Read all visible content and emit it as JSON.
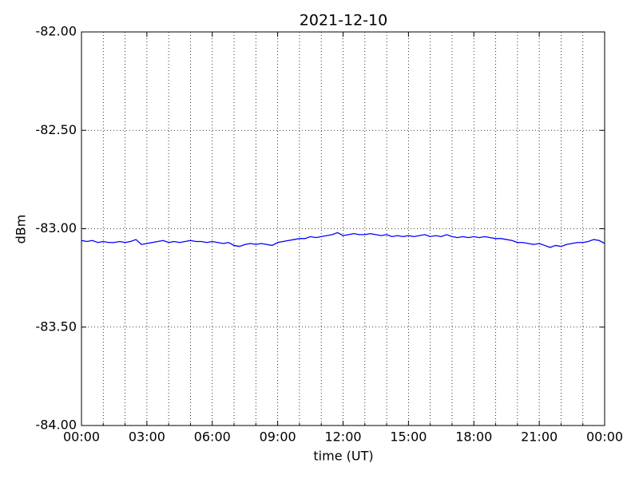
{
  "chart_data": {
    "type": "line",
    "title": "2021-12-10",
    "xlabel": "time (UT)",
    "ylabel": "dBm",
    "x": [
      0,
      0.25,
      0.5,
      0.75,
      1,
      1.25,
      1.5,
      1.75,
      2,
      2.25,
      2.5,
      2.75,
      3,
      3.25,
      3.5,
      3.75,
      4,
      4.25,
      4.5,
      4.75,
      5,
      5.25,
      5.5,
      5.75,
      6,
      6.25,
      6.5,
      6.75,
      7,
      7.25,
      7.5,
      7.75,
      8,
      8.25,
      8.5,
      8.75,
      9,
      9.25,
      9.5,
      9.75,
      10,
      10.25,
      10.5,
      10.75,
      11,
      11.25,
      11.5,
      11.75,
      12,
      12.25,
      12.5,
      12.75,
      13,
      13.25,
      13.5,
      13.75,
      14,
      14.25,
      14.5,
      14.75,
      15,
      15.25,
      15.5,
      15.75,
      16,
      16.25,
      16.5,
      16.75,
      17,
      17.25,
      17.5,
      17.75,
      18,
      18.25,
      18.5,
      18.75,
      19,
      19.25,
      19.5,
      19.75,
      20,
      20.25,
      20.5,
      20.75,
      21,
      21.25,
      21.5,
      21.75,
      22,
      22.25,
      22.5,
      22.75,
      23,
      23.25,
      23.5,
      23.75,
      24
    ],
    "series": [
      {
        "name": "dBm",
        "color": "#0000ff",
        "values": [
          -83.06,
          -83.065,
          -83.06,
          -83.07,
          -83.065,
          -83.07,
          -83.07,
          -83.065,
          -83.07,
          -83.065,
          -83.055,
          -83.08,
          -83.075,
          -83.07,
          -83.065,
          -83.06,
          -83.07,
          -83.065,
          -83.07,
          -83.065,
          -83.06,
          -83.065,
          -83.065,
          -83.07,
          -83.065,
          -83.07,
          -83.075,
          -83.07,
          -83.085,
          -83.09,
          -83.08,
          -83.075,
          -83.08,
          -83.075,
          -83.08,
          -83.085,
          -83.07,
          -83.065,
          -83.06,
          -83.055,
          -83.05,
          -83.05,
          -83.04,
          -83.045,
          -83.04,
          -83.035,
          -83.03,
          -83.02,
          -83.035,
          -83.03,
          -83.025,
          -83.03,
          -83.03,
          -83.025,
          -83.03,
          -83.035,
          -83.03,
          -83.04,
          -83.035,
          -83.04,
          -83.035,
          -83.04,
          -83.035,
          -83.03,
          -83.04,
          -83.035,
          -83.04,
          -83.03,
          -83.04,
          -83.045,
          -83.04,
          -83.045,
          -83.04,
          -83.045,
          -83.04,
          -83.045,
          -83.05,
          -83.05,
          -83.055,
          -83.06,
          -83.07,
          -83.07,
          -83.075,
          -83.08,
          -83.075,
          -83.085,
          -83.095,
          -83.085,
          -83.09,
          -83.08,
          -83.075,
          -83.07,
          -83.07,
          -83.065,
          -83.055,
          -83.06,
          -83.075
        ]
      }
    ],
    "xlim": [
      0,
      24
    ],
    "xticks": [
      {
        "value": 0,
        "label": "00:00"
      },
      {
        "value": 3,
        "label": "03:00"
      },
      {
        "value": 6,
        "label": "06:00"
      },
      {
        "value": 9,
        "label": "09:00"
      },
      {
        "value": 12,
        "label": "12:00"
      },
      {
        "value": 15,
        "label": "15:00"
      },
      {
        "value": 18,
        "label": "18:00"
      },
      {
        "value": 21,
        "label": "21:00"
      },
      {
        "value": 24,
        "label": "00:00"
      }
    ],
    "xminorticks": [
      1,
      2,
      4,
      5,
      7,
      8,
      10,
      11,
      13,
      14,
      16,
      17,
      19,
      20,
      22,
      23
    ],
    "ylim": [
      -84,
      -82
    ],
    "yticks": [
      {
        "value": -84,
        "label": "-84.00"
      },
      {
        "value": -83.5,
        "label": "-83.50"
      },
      {
        "value": -83,
        "label": "-83.00"
      },
      {
        "value": -82.5,
        "label": "-82.50"
      },
      {
        "value": -82,
        "label": "-82.00"
      }
    ],
    "grid": true
  }
}
